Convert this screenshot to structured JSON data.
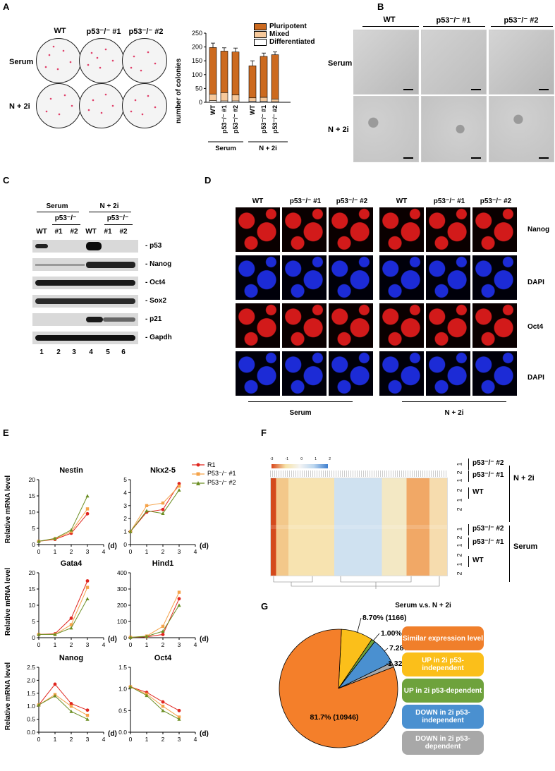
{
  "panels": {
    "A": "A",
    "B": "B",
    "C": "C",
    "D": "D",
    "E": "E",
    "F": "F",
    "G": "G"
  },
  "panelA": {
    "columns": [
      "WT",
      "p53⁻/⁻ #1",
      "p53⁻/⁻ #2"
    ],
    "rows": [
      "Serum",
      "N + 2i"
    ],
    "ylabel": "number of colonies",
    "legend": [
      "Pluripotent",
      "Mixed",
      "Differentiated"
    ],
    "xlabels": [
      "WT",
      "p53⁻/⁻ #1",
      "p53⁻/⁻ #2",
      "WT",
      "p53⁻/⁻ #1",
      "p53⁻/⁻ #2"
    ],
    "groups": [
      "Serum",
      "N + 2i"
    ],
    "yticks": [
      "0",
      "50",
      "100",
      "150",
      "200",
      "250"
    ],
    "colors": {
      "pluripotent": "#cc6a1f",
      "mixed": "#f6c89a",
      "differentiated": "#ffffff"
    }
  },
  "chart_data": [
    {
      "type": "bar",
      "categories": [
        "WT",
        "p53-/- #1",
        "p53-/- #2",
        "WT",
        "p53-/- #1",
        "p53-/- #2"
      ],
      "series": [
        {
          "name": "Pluripotent",
          "values": [
            168,
            150,
            155,
            116,
            148,
            160
          ]
        },
        {
          "name": "Mixed",
          "values": [
            24,
            30,
            22,
            12,
            14,
            10
          ]
        },
        {
          "name": "Differentiated",
          "values": [
            6,
            5,
            5,
            4,
            4,
            2
          ]
        }
      ],
      "ylabel": "number of colonies",
      "ylim": [
        0,
        250
      ]
    },
    {
      "type": "line",
      "title": "Nestin",
      "x": [
        0,
        1,
        2,
        3
      ],
      "ylim": [
        0,
        20
      ],
      "yticks": [
        "0",
        "5",
        "10",
        "15",
        "20"
      ],
      "xticks": [
        "0",
        "1",
        "2",
        "3",
        "4"
      ],
      "series": [
        {
          "name": "R1",
          "values": [
            1.0,
            1.6,
            3.5,
            9.5
          ]
        },
        {
          "name": "P53⁻/⁻ #1",
          "values": [
            1.0,
            1.8,
            4.0,
            11.0
          ]
        },
        {
          "name": "P53⁻/⁻ #2",
          "values": [
            1.0,
            1.9,
            4.5,
            15.0
          ]
        }
      ]
    },
    {
      "type": "line",
      "title": "Nkx2-5",
      "x": [
        0,
        1,
        2,
        3
      ],
      "ylim": [
        0,
        5
      ],
      "yticks": [
        "0",
        "1",
        "2",
        "3",
        "4",
        "5"
      ],
      "xticks": [
        "0",
        "1",
        "2",
        "3",
        "4"
      ],
      "series": [
        {
          "name": "R1",
          "values": [
            1.0,
            2.5,
            2.7,
            4.7
          ]
        },
        {
          "name": "P53⁻/⁻ #1",
          "values": [
            1.0,
            3.0,
            3.2,
            4.5
          ]
        },
        {
          "name": "P53⁻/⁻ #2",
          "values": [
            1.0,
            2.6,
            2.4,
            4.2
          ]
        }
      ]
    },
    {
      "type": "line",
      "title": "Gata4",
      "x": [
        0,
        1,
        2,
        3
      ],
      "ylim": [
        0,
        20
      ],
      "yticks": [
        "0",
        "5",
        "10",
        "15",
        "20"
      ],
      "xticks": [
        "0",
        "1",
        "2",
        "3",
        "4"
      ],
      "series": [
        {
          "name": "R1",
          "values": [
            1.0,
            1.2,
            6.0,
            17.5
          ]
        },
        {
          "name": "P53⁻/⁻ #1",
          "values": [
            1.0,
            1.0,
            4.0,
            15.5
          ]
        },
        {
          "name": "P53⁻/⁻ #2",
          "values": [
            1.0,
            1.0,
            3.0,
            12.0
          ]
        }
      ]
    },
    {
      "type": "line",
      "title": "Hind1",
      "x": [
        0,
        1,
        2,
        3
      ],
      "ylim": [
        0,
        400
      ],
      "yticks": [
        "0",
        "100",
        "200",
        "300",
        "400"
      ],
      "xticks": [
        "0",
        "1",
        "2",
        "3",
        "4"
      ],
      "series": [
        {
          "name": "R1",
          "values": [
            2,
            5,
            20,
            240
          ]
        },
        {
          "name": "P53⁻/⁻ #1",
          "values": [
            2,
            10,
            70,
            280
          ]
        },
        {
          "name": "P53⁻/⁻ #2",
          "values": [
            2,
            8,
            40,
            200
          ]
        }
      ]
    },
    {
      "type": "line",
      "title": "Nanog",
      "x": [
        0,
        1,
        2,
        3
      ],
      "ylim": [
        0,
        2.5
      ],
      "yticks": [
        "0.0",
        "0.5",
        "1.0",
        "1.5",
        "2.0",
        "2.5"
      ],
      "xticks": [
        "0",
        "1",
        "2",
        "3",
        "4"
      ],
      "series": [
        {
          "name": "R1",
          "values": [
            1.05,
            1.85,
            1.1,
            0.85
          ]
        },
        {
          "name": "P53⁻/⁻ #1",
          "values": [
            1.05,
            1.45,
            1.0,
            0.65
          ]
        },
        {
          "name": "P53⁻/⁻ #2",
          "values": [
            1.05,
            1.4,
            0.8,
            0.5
          ]
        }
      ]
    },
    {
      "type": "line",
      "title": "Oct4",
      "x": [
        0,
        1,
        2,
        3
      ],
      "ylim": [
        0,
        1.5
      ],
      "yticks": [
        "0.0",
        "0.5",
        "1.0",
        "1.5"
      ],
      "xticks": [
        "0",
        "1",
        "2",
        "3",
        "4"
      ],
      "series": [
        {
          "name": "R1",
          "values": [
            1.05,
            0.92,
            0.7,
            0.5
          ]
        },
        {
          "name": "P53⁻/⁻ #1",
          "values": [
            1.05,
            0.88,
            0.6,
            0.35
          ]
        },
        {
          "name": "P53⁻/⁻ #2",
          "values": [
            1.05,
            0.85,
            0.5,
            0.3
          ]
        }
      ]
    },
    {
      "type": "pie",
      "title": "Serum v.s. N + 2i",
      "categories": [
        "Similar expression level",
        "UP in 2i p53-independent",
        "UP in 2i p53-dependent",
        "DOWN in 2i p53-independent",
        "DOWN in 2i p53-dependent"
      ],
      "values": [
        81.7,
        8.7,
        1.0,
        7.28,
        1.32
      ],
      "labels": [
        "81.7% (10946)",
        "8.70% (1166)",
        "1.00% (134)",
        "7.28% (975)",
        "1.32% (177)"
      ],
      "colors": [
        "#f47f2a",
        "#fbbf1a",
        "#6ea23c",
        "#4a90d0",
        "#a8a8a8"
      ]
    }
  ],
  "panelB": {
    "columns": [
      "WT",
      "p53⁻/⁻ #1",
      "p53⁻/⁻ #2"
    ],
    "rows": [
      "Serum",
      "N + 2i"
    ]
  },
  "panelC": {
    "conditions": [
      "Serum",
      "N + 2i"
    ],
    "sub": [
      "p53⁻/⁻",
      "p53⁻/⁻"
    ],
    "lanes_top": [
      "WT",
      "#1",
      "#2",
      "WT",
      "#1",
      "#2"
    ],
    "bands": [
      "- p53",
      "- Nanog",
      "- Oct4",
      "- Sox2",
      "- p21",
      "- Gapdh"
    ],
    "lane_numbers": [
      "1",
      "2",
      "3",
      "4",
      "5",
      "6"
    ]
  },
  "panelD": {
    "columns": [
      "WT",
      "p53⁻/⁻ #1",
      "p53⁻/⁻ #2",
      "WT",
      "p53⁻/⁻ #1",
      "p53⁻/⁻ #2"
    ],
    "rows": [
      "Nanog",
      "DAPI",
      "Oct4",
      "DAPI"
    ],
    "groups": [
      "Serum",
      "N + 2i"
    ]
  },
  "panelE": {
    "ylabel": "Relative mRNA level",
    "xunit": "(d)",
    "legend": [
      "R1",
      "P53⁻/⁻ #1",
      "P53⁻/⁻ #2"
    ],
    "colors": [
      "#e0261f",
      "#f5a34a",
      "#6b8e23"
    ]
  },
  "panelF": {
    "scale": [
      "-3",
      "-1",
      "0",
      "1",
      "2"
    ],
    "rows_right": [
      "p53⁻/⁻ #2",
      "p53⁻/⁻ #1",
      "WT",
      "p53⁻/⁻ #2",
      "p53⁻/⁻ #1",
      "WT"
    ],
    "groups": [
      "N + 2i",
      "Serum"
    ],
    "reps": [
      "1",
      "2",
      "1",
      "2",
      "1",
      "2",
      "1",
      "2",
      "1",
      "2",
      "1",
      "2"
    ]
  },
  "panelG": {
    "title": "Serum v.s. N + 2i",
    "legend": [
      "Similar expression level",
      "UP in 2i p53-independent",
      "UP in 2i p53-dependent",
      "DOWN in 2i p53-independent",
      "DOWN in 2i p53-dependent"
    ]
  }
}
